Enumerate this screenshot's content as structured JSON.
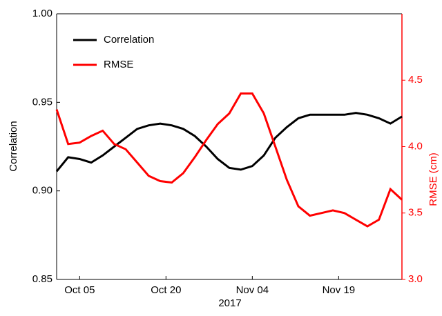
{
  "chart_data": {
    "type": "line",
    "xlabel": "2017",
    "ylabel": "Correlation",
    "y2label": "RMSE (cm)",
    "x": [
      "2017-10-01",
      "2017-10-03",
      "2017-10-05",
      "2017-10-07",
      "2017-10-09",
      "2017-10-11",
      "2017-10-13",
      "2017-10-15",
      "2017-10-17",
      "2017-10-19",
      "2017-10-21",
      "2017-10-23",
      "2017-10-25",
      "2017-10-27",
      "2017-10-29",
      "2017-10-31",
      "2017-11-02",
      "2017-11-04",
      "2017-11-06",
      "2017-11-08",
      "2017-11-10",
      "2017-11-12",
      "2017-11-14",
      "2017-11-16",
      "2017-11-18",
      "2017-11-20",
      "2017-11-22",
      "2017-11-24",
      "2017-11-26",
      "2017-11-28",
      "2017-11-30"
    ],
    "series": [
      {
        "name": "Correlation",
        "color": "#000000",
        "values": [
          0.911,
          0.919,
          0.918,
          0.916,
          0.92,
          0.925,
          0.93,
          0.935,
          0.937,
          0.938,
          0.937,
          0.935,
          0.931,
          0.925,
          0.918,
          0.913,
          0.912,
          0.914,
          0.92,
          0.93,
          0.936,
          0.941,
          0.943,
          0.943,
          0.943,
          0.943,
          0.944,
          0.943,
          0.941,
          0.938,
          0.942
        ]
      },
      {
        "name": "RMSE",
        "color": "#ff0000",
        "axis": "y2",
        "values": [
          4.28,
          4.02,
          4.03,
          4.08,
          4.12,
          4.02,
          3.98,
          3.88,
          3.78,
          3.74,
          3.73,
          3.8,
          3.92,
          4.05,
          4.17,
          4.25,
          4.4,
          4.4,
          4.25,
          4.0,
          3.75,
          3.55,
          3.48,
          3.5,
          3.52,
          3.5,
          3.45,
          3.4,
          3.45,
          3.68,
          3.6
        ]
      }
    ],
    "xlim": [
      "2017-10-01",
      "2017-11-30"
    ],
    "xticks": [
      {
        "value": "2017-10-05",
        "label": "Oct 05"
      },
      {
        "value": "2017-10-20",
        "label": "Oct 20"
      },
      {
        "value": "2017-11-04",
        "label": "Nov 04"
      },
      {
        "value": "2017-11-19",
        "label": "Nov 19"
      }
    ],
    "ylim": [
      0.85,
      1.0
    ],
    "yticks": [
      0.85,
      {
        "value": 0.9,
        "label": "0.90"
      },
      0.95,
      {
        "value": 1.0,
        "label": "1.00"
      }
    ],
    "y2lim": [
      3.0,
      5.0
    ],
    "y2ticks": [
      {
        "value": 3.0,
        "label": "3.0"
      },
      3.5,
      {
        "value": 4.0,
        "label": "4.0"
      },
      4.5
    ],
    "y2color": "#ff0000",
    "legend": "upper left"
  }
}
